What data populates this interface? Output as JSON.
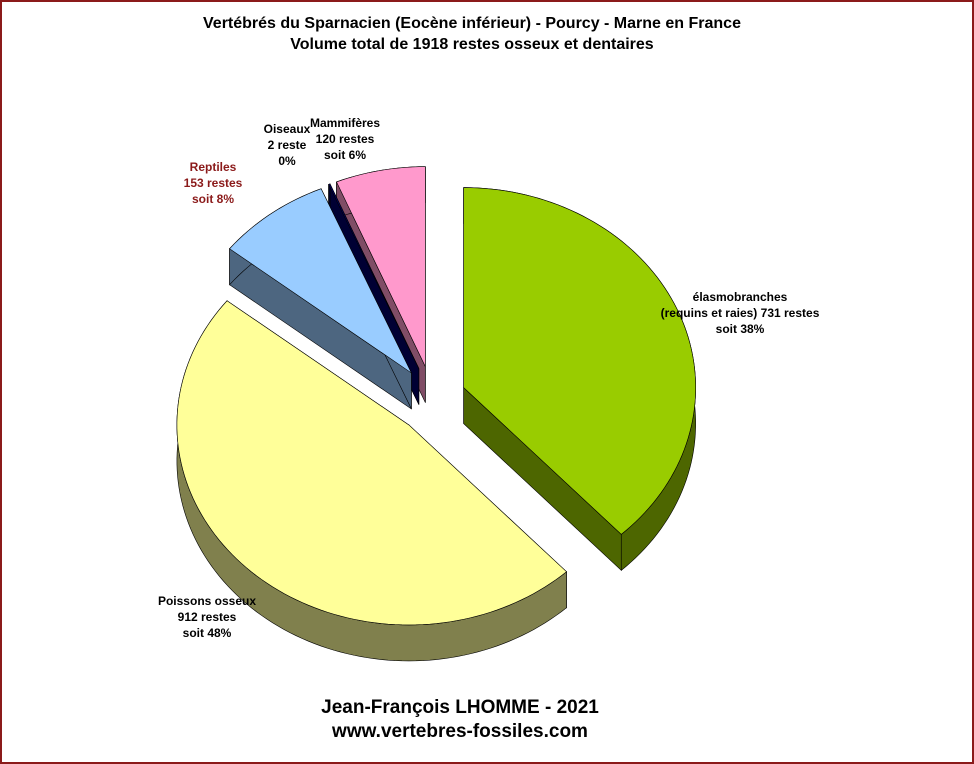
{
  "chart_data": {
    "type": "pie3d",
    "title": "Vertébrés du Sparnacien (Eocène inférieur) - Pourcy - Marne en France",
    "subtitle": "Volume total de 1918 restes osseux et dentaires",
    "categories": [
      "élasmobranches",
      "Poissons osseux",
      "Reptiles",
      "Oiseaux",
      "Mammifères"
    ],
    "descriptions": [
      "(requins et raies)",
      null,
      null,
      null,
      null
    ],
    "values": [
      731,
      912,
      153,
      2,
      120
    ],
    "value_labels": [
      "731 restes",
      "912 restes",
      "153 restes",
      "2 reste",
      "120 restes"
    ],
    "share_labels": [
      "soit 38%",
      "soit 48%",
      "soit 8%",
      "0%",
      "soit 6%"
    ],
    "colors": [
      "#99cc00",
      "#ffff99",
      "#99ccff",
      "#000066",
      "#ff99cc"
    ],
    "author": "Jean-François LHOMME  - 2021",
    "website": "www.vertebres-fossiles.com"
  }
}
